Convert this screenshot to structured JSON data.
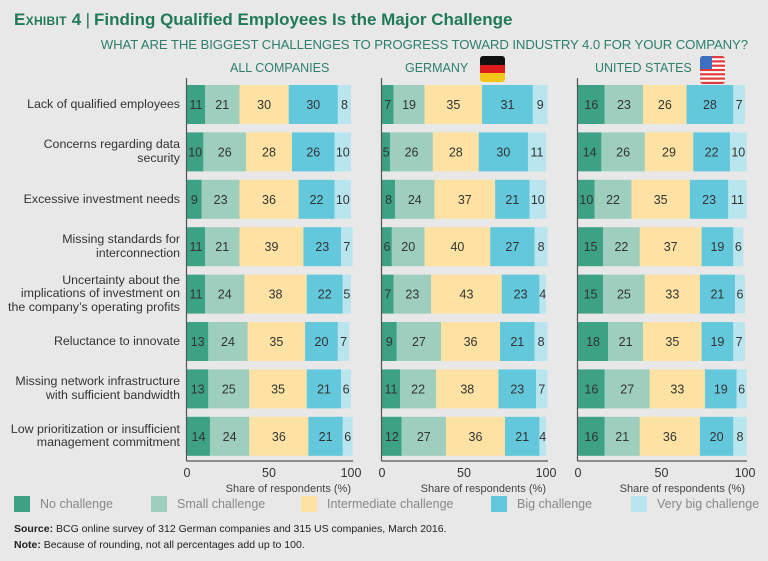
{
  "header": {
    "exhibit": "Exhibit 4",
    "title": "Finding Qualified Employees Is the Major Challenge",
    "subtitle": "WHAT ARE THE BIGGEST CHALLENGES TO PROGRESS TOWARD INDUSTRY 4.0 FOR YOUR COMPANY?"
  },
  "icons": {
    "germany": "germany-flag-icon",
    "us": "us-flag-icon"
  },
  "colors": {
    "title": "#1f7a55",
    "no_challenge": "#3da184",
    "small_challenge": "#9ecebd",
    "intermediate_challenge": "#fde2a3",
    "big_challenge": "#64c8dc",
    "very_big_challenge": "#b8e5ee"
  },
  "chart_data": {
    "type": "bar",
    "orientation": "horizontal-stacked",
    "title": "Finding Qualified Employees Is the Major Challenge",
    "subtitle": "WHAT ARE THE BIGGEST CHALLENGES TO PROGRESS TOWARD INDUSTRY 4.0 FOR YOUR COMPANY?",
    "categories": [
      "Lack of qualified employees",
      "Concerns regarding data\nsecurity",
      "Excessive investment needs",
      "Missing standards for\ninterconnection",
      "Uncertainty about the\nimplications of investment on\nthe company’s operating profits",
      "Reluctance to innovate",
      "Missing network infrastructure\nwith sufficient bandwidth",
      "Low prioritization or insufficient\nmanagement commitment"
    ],
    "series_names": [
      "No challenge",
      "Small challenge",
      "Intermediate challenge",
      "Big challenge",
      "Very big challenge"
    ],
    "xlabel": "Share of respondents (%)",
    "xlim": [
      0,
      100
    ],
    "xticks": [
      "0",
      "50",
      "100"
    ],
    "legend_position": "bottom",
    "grid": false,
    "panels": [
      {
        "name": "ALL COMPANIES",
        "values": [
          [
            11,
            21,
            30,
            30,
            8
          ],
          [
            10,
            26,
            28,
            26,
            10
          ],
          [
            9,
            23,
            36,
            22,
            10
          ],
          [
            11,
            21,
            39,
            23,
            7
          ],
          [
            11,
            24,
            38,
            22,
            5
          ],
          [
            13,
            24,
            35,
            20,
            7
          ],
          [
            13,
            25,
            35,
            21,
            6
          ],
          [
            14,
            24,
            36,
            21,
            6
          ]
        ]
      },
      {
        "name": "GERMANY",
        "values": [
          [
            7,
            19,
            35,
            31,
            9
          ],
          [
            5,
            26,
            28,
            30,
            11
          ],
          [
            8,
            24,
            37,
            21,
            10
          ],
          [
            6,
            20,
            40,
            27,
            8
          ],
          [
            7,
            23,
            43,
            23,
            4
          ],
          [
            9,
            27,
            36,
            21,
            8
          ],
          [
            11,
            22,
            38,
            23,
            7
          ],
          [
            12,
            27,
            36,
            21,
            4
          ]
        ]
      },
      {
        "name": "UNITED STATES",
        "values": [
          [
            16,
            23,
            26,
            28,
            7
          ],
          [
            14,
            26,
            29,
            22,
            10
          ],
          [
            10,
            22,
            35,
            23,
            11
          ],
          [
            15,
            22,
            37,
            19,
            6
          ],
          [
            15,
            25,
            33,
            21,
            6
          ],
          [
            18,
            21,
            35,
            19,
            7
          ],
          [
            16,
            27,
            33,
            19,
            6
          ],
          [
            16,
            21,
            36,
            20,
            8
          ]
        ]
      }
    ]
  },
  "footer": {
    "source_label": "Source:",
    "source_text": " BCG online survey of 312 German companies and 315 US companies, March 2016.",
    "note_label": "Note:",
    "note_text": " Because of rounding, not all percentages add up to 100."
  }
}
